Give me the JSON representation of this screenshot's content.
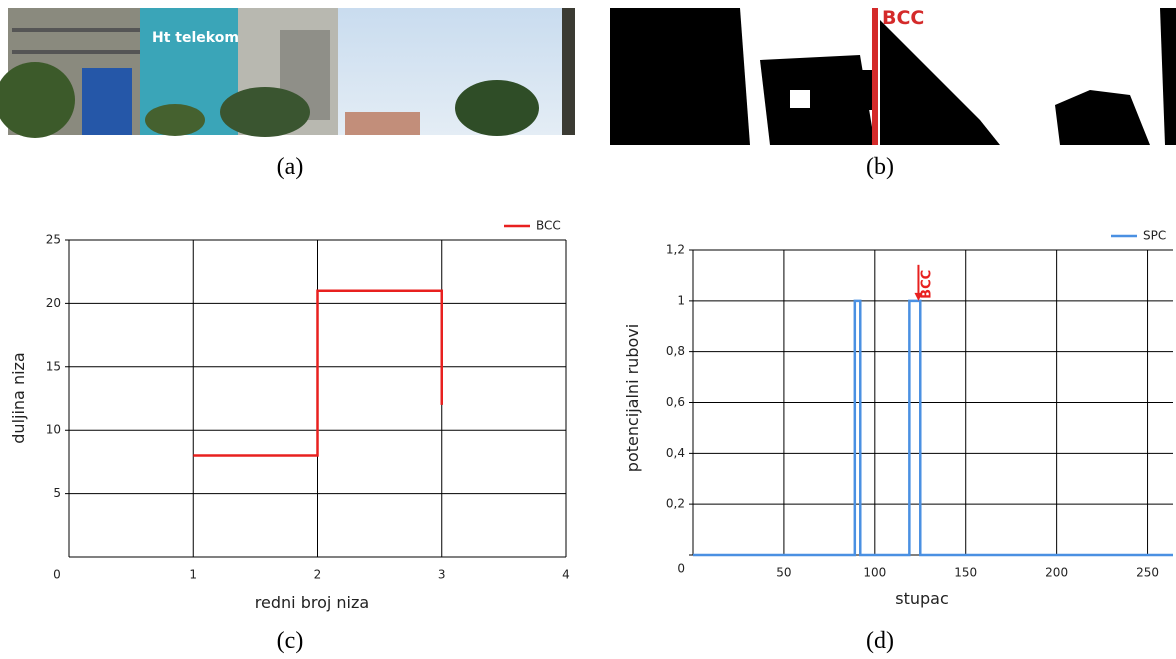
{
  "figure": {
    "captions": [
      "(a)",
      "(b)",
      "(c)",
      "(d)"
    ],
    "image_b_label": "BCC"
  },
  "chart_data": [
    {
      "type": "line",
      "x": [
        1,
        2,
        2,
        3,
        3
      ],
      "series": [
        {
          "name": "BCC",
          "color": "#e8201f",
          "values": [
            8,
            8,
            21,
            21,
            12
          ]
        }
      ],
      "xlabel": "redni broj niza",
      "ylabel": "duljina niza",
      "xlim": [
        0,
        4
      ],
      "xticks": [
        0,
        1,
        2,
        3,
        4
      ],
      "ylim": [
        0,
        25
      ],
      "yticks": [
        5,
        10,
        15,
        20,
        25
      ],
      "grid": true,
      "legend": "upper right"
    },
    {
      "type": "line",
      "x": [
        0,
        89,
        89,
        92,
        92,
        119,
        119,
        125,
        125,
        264
      ],
      "series": [
        {
          "name": "SPC",
          "color": "#4a90e2",
          "values": [
            0,
            0,
            1,
            1,
            0,
            0,
            1,
            1,
            0,
            0
          ]
        }
      ],
      "xlabel": "stupac",
      "ylabel": "potencijalni rubovi",
      "xlim": [
        0,
        264
      ],
      "xticks": [
        50,
        100,
        150,
        200,
        250
      ],
      "ylim": [
        0,
        1.2
      ],
      "yticks": [
        0,
        {
          "value": 0.2,
          "label": "0,2"
        },
        {
          "value": 0.4,
          "label": "0,4"
        },
        {
          "value": 0.6,
          "label": "0,6"
        },
        {
          "value": 0.8,
          "label": "0,8"
        },
        1,
        {
          "value": 1.2,
          "label": "1,2"
        }
      ],
      "grid": true,
      "legend": "upper right",
      "annotations": [
        {
          "text": "BCC",
          "x": 124,
          "y": 1,
          "color": "#e8201f"
        }
      ]
    }
  ]
}
